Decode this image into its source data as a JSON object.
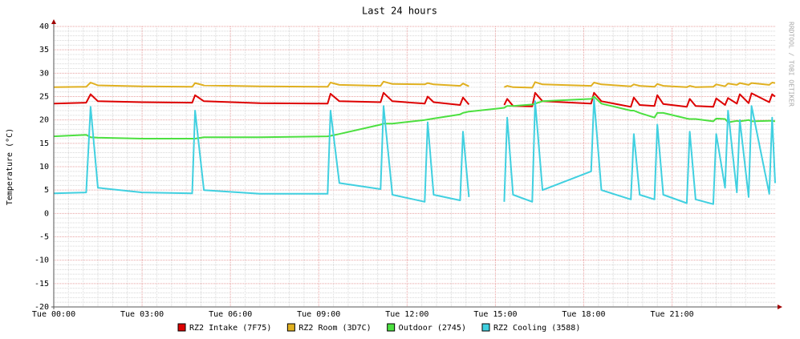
{
  "chart_data": {
    "type": "line",
    "title": "Last 24 hours",
    "y_label": "Temperature (°C)",
    "credit": "RRDTOOL / TOBI OETIKER",
    "x": [
      0,
      1.1,
      1.25,
      1.5,
      3,
      4.7,
      4.8,
      5.1,
      7,
      9.3,
      9.4,
      9.7,
      11.1,
      11.2,
      11.5,
      12.6,
      12.7,
      12.9,
      13.8,
      13.9,
      14.1,
      15.0,
      15.3,
      15.4,
      15.6,
      16.25,
      16.35,
      16.6,
      18.25,
      18.35,
      18.6,
      19.6,
      19.7,
      19.9,
      20.4,
      20.5,
      20.7,
      21.5,
      21.6,
      21.8,
      22.4,
      22.5,
      22.8,
      22.9,
      23.2,
      23.3,
      23.6,
      23.7,
      24.3,
      24.4,
      24.5
    ],
    "series": [
      {
        "name": "RZ2 Intake (7F75)",
        "color": "#dd0000",
        "values": [
          23.5,
          23.7,
          25.5,
          24,
          23.8,
          23.7,
          25.3,
          24,
          23.6,
          23.5,
          25.6,
          24,
          23.8,
          25.8,
          24,
          23.5,
          25,
          23.8,
          23.2,
          24.8,
          23.3,
          null,
          23.2,
          24.5,
          23,
          22.9,
          25.8,
          24,
          23.5,
          25.8,
          24,
          22.8,
          24.8,
          23.2,
          23,
          25.3,
          23.4,
          22.8,
          24.5,
          23,
          22.8,
          24.6,
          23.2,
          24.7,
          23.5,
          25.5,
          23.6,
          25.7,
          23.8,
          25.5,
          25
        ]
      },
      {
        "name": "RZ2 Room (3D7C)",
        "color": "#e0b020",
        "values": [
          27,
          27.1,
          28,
          27.4,
          27.2,
          27.1,
          27.9,
          27.4,
          27.2,
          27.1,
          28,
          27.5,
          27.3,
          28.2,
          27.7,
          27.6,
          27.9,
          27.6,
          27.3,
          27.8,
          27.2,
          null,
          27,
          27.3,
          27,
          26.9,
          28.1,
          27.6,
          27.3,
          28,
          27.6,
          27.2,
          27.6,
          27.3,
          27.1,
          27.7,
          27.3,
          27,
          27.3,
          27,
          27.1,
          27.6,
          27.2,
          27.8,
          27.5,
          27.9,
          27.5,
          27.9,
          27.5,
          28,
          27.9
        ]
      },
      {
        "name": "Outdoor (2745)",
        "color": "#4ce040",
        "values": [
          16.5,
          16.8,
          16.3,
          16.2,
          16,
          16,
          16,
          16.3,
          16.3,
          16.5,
          16.6,
          17,
          19,
          19.2,
          19.2,
          20,
          20.1,
          20.3,
          21.2,
          21.5,
          21.8,
          22.4,
          22.6,
          23,
          23,
          23.3,
          23.5,
          24,
          24.5,
          25,
          23.5,
          22,
          22,
          21.5,
          20.5,
          21.5,
          21.5,
          20.3,
          20.2,
          20.2,
          19.7,
          20.3,
          20.2,
          19.5,
          19.8,
          19.7,
          20,
          19.7,
          19.8,
          19.8,
          19.7
        ]
      },
      {
        "name": "RZ2 Cooling (3588)",
        "color": "#40d0e0",
        "values": [
          4.3,
          4.5,
          22.8,
          5.5,
          4.5,
          4.3,
          22,
          5,
          4.2,
          4.2,
          22,
          6.5,
          5.2,
          23,
          4,
          2.5,
          19.5,
          4,
          2.8,
          17.5,
          3.5,
          null,
          2.5,
          20.5,
          4,
          2.5,
          24,
          5,
          9,
          24.5,
          5,
          3,
          17,
          4,
          3,
          19,
          4,
          2.2,
          17.5,
          3,
          2,
          17,
          5.5,
          22,
          4.5,
          20,
          3.5,
          23,
          4.2,
          20.5,
          6.5
        ]
      }
    ],
    "xlim": [
      0,
      24.5
    ],
    "xticks": [
      {
        "value": 0,
        "label": "Tue 00:00"
      },
      {
        "value": 3,
        "label": "Tue 03:00"
      },
      {
        "value": 6,
        "label": "Tue 06:00"
      },
      {
        "value": 9,
        "label": "Tue 09:00"
      },
      {
        "value": 12,
        "label": "Tue 12:00"
      },
      {
        "value": 15,
        "label": "Tue 15:00"
      },
      {
        "value": 18,
        "label": "Tue 18:00"
      },
      {
        "value": 21,
        "label": "Tue 21:00"
      }
    ],
    "ylim": [
      -20,
      40
    ],
    "yticks": [
      -20,
      -15,
      -10,
      -5,
      0,
      5,
      10,
      15,
      20,
      25,
      30,
      35,
      40
    ],
    "grid": true
  }
}
